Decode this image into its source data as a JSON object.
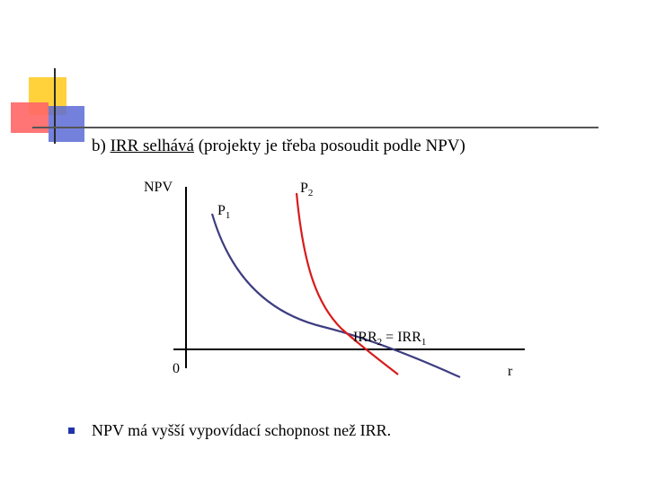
{
  "heading": {
    "prefix": "b) ",
    "underlined": "IRR selhává",
    "rest": " (projekty je třeba posoudit podle NPV)"
  },
  "axes": {
    "y_label": "NPV",
    "x_label": "r",
    "origin_label": "0"
  },
  "curves": {
    "p1": {
      "letter": "P",
      "index": "1",
      "color": "#3d3d80"
    },
    "p2": {
      "letter": "P",
      "index": "2",
      "color": "#d81b1b"
    }
  },
  "intersection": {
    "left_text": "IRR",
    "left_index": "2",
    "mid_text": " = IRR",
    "right_index": "1"
  },
  "note": {
    "text": "NPV má vyšší vypovídací schopnost než IRR."
  },
  "colors": {
    "bullet": "#2233aa",
    "accent_yellow": "#ffd23c",
    "accent_red": "#ff6666",
    "accent_blue": "#5b6bd6"
  }
}
